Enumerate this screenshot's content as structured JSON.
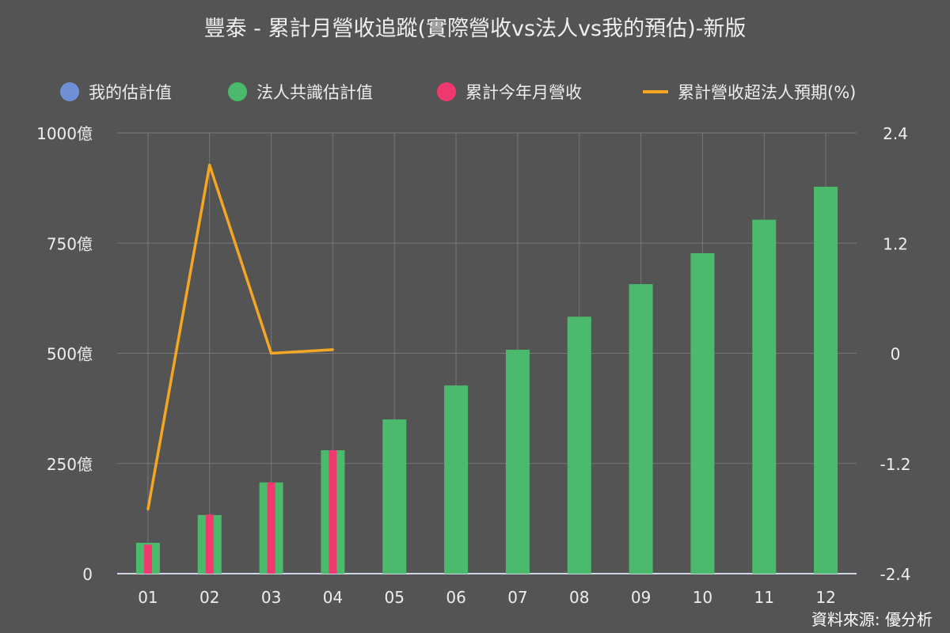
{
  "chart_data": {
    "type": "bar",
    "title": "豐泰 - 累計月營收追蹤(實際營收vs法人vs我的預估)-新版",
    "categories": [
      "01",
      "02",
      "03",
      "04",
      "05",
      "06",
      "07",
      "08",
      "09",
      "10",
      "11",
      "12"
    ],
    "series": [
      {
        "name": "我的估計值",
        "kind": "bar",
        "color": "#6f8fd6",
        "values": [
          null,
          null,
          null,
          null,
          null,
          null,
          null,
          null,
          null,
          null,
          null,
          null
        ]
      },
      {
        "name": "法人共識估計值",
        "kind": "bar",
        "color": "#4cba6c",
        "values": [
          70,
          133,
          207,
          280,
          350,
          427,
          508,
          583,
          657,
          727,
          803,
          878
        ]
      },
      {
        "name": "累計今年月營收",
        "kind": "bar",
        "color": "#f0396e",
        "values": [
          66,
          134,
          207,
          280,
          null,
          null,
          null,
          null,
          null,
          null,
          null,
          null
        ]
      },
      {
        "name": "累計營收超法人預期(%)",
        "kind": "line",
        "axis": "right",
        "color": "#f5a623",
        "values": [
          -1.7,
          2.05,
          0.0,
          0.04,
          null,
          null,
          null,
          null,
          null,
          null,
          null,
          null
        ]
      }
    ],
    "y_left": {
      "min": 0,
      "max": 1000,
      "ticks": [
        "0",
        "250億",
        "500億",
        "750億",
        "1000億"
      ],
      "tick_values": [
        0,
        250,
        500,
        750,
        1000
      ]
    },
    "y_right": {
      "min": -2.4,
      "max": 2.4,
      "ticks": [
        "-2.4",
        "-1.2",
        "0",
        "1.2",
        "2.4"
      ],
      "tick_values": [
        -2.4,
        -1.2,
        0,
        1.2,
        2.4
      ]
    },
    "legend_position": "top",
    "grid": true
  },
  "source_text": "資料來源: 優分析"
}
